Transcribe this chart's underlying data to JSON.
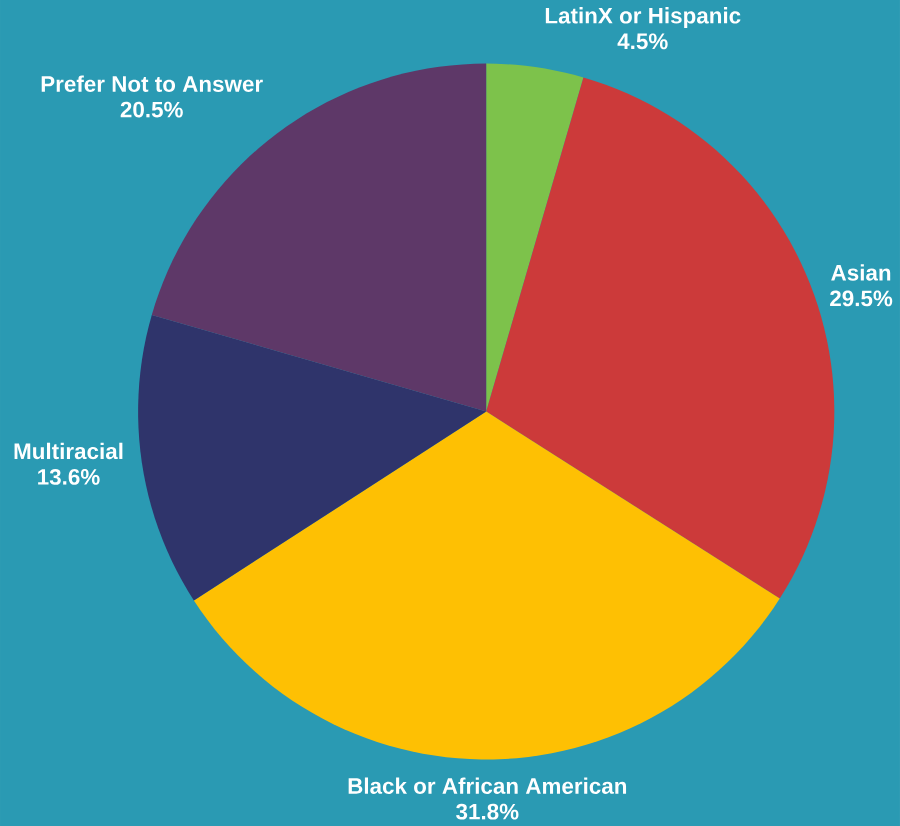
{
  "chart_data": {
    "type": "pie",
    "categories": [
      "LatinX or Hispanic",
      "Asian",
      "Black or African American",
      "Multiracial",
      "Prefer Not to Answer"
    ],
    "values": [
      4.5,
      29.5,
      31.8,
      13.6,
      20.5
    ],
    "value_labels": [
      "4.5%",
      "29.5%",
      "31.8%",
      "13.6%",
      "20.5%"
    ],
    "colors": [
      "#7dc24b",
      "#cc3a3a",
      "#fec003",
      "#2f346b",
      "#5e3868"
    ]
  }
}
